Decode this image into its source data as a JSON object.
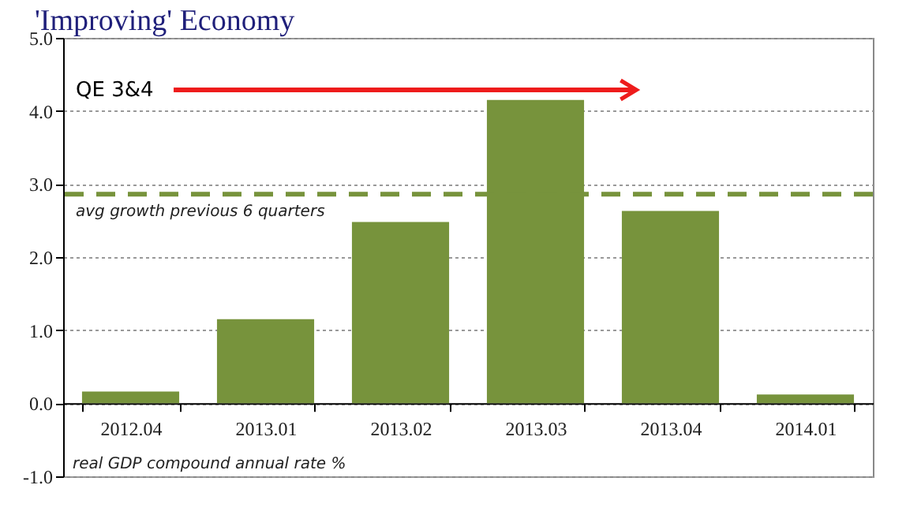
{
  "chart_data": {
    "type": "bar",
    "title": "'Improving' Economy",
    "categories": [
      "2012.04",
      "2013.01",
      "2013.02",
      "2013.03",
      "2013.04",
      "2014.01"
    ],
    "values": [
      0.16,
      1.15,
      2.48,
      4.15,
      2.63,
      0.12
    ],
    "color": "#77933c",
    "ylim": [
      -1,
      5
    ],
    "yticks": [
      {
        "value": -1,
        "label": "-1.0"
      },
      {
        "value": 0,
        "label": "0.0"
      },
      {
        "value": 1,
        "label": "1.0"
      },
      {
        "value": 2,
        "label": "2.0"
      },
      {
        "value": 3,
        "label": "3.0"
      },
      {
        "value": 4,
        "label": "4.0"
      },
      {
        "value": 5,
        "label": "5.0"
      }
    ],
    "grid": "y",
    "ref_lines": [
      {
        "axis": "y",
        "value": 2.86,
        "label": "avg growth previous 6 quarters",
        "color": "#77933c",
        "line_style": "dashed"
      }
    ],
    "annotations": [
      "QE 3&4",
      "real GDP compound annual rate %"
    ]
  }
}
